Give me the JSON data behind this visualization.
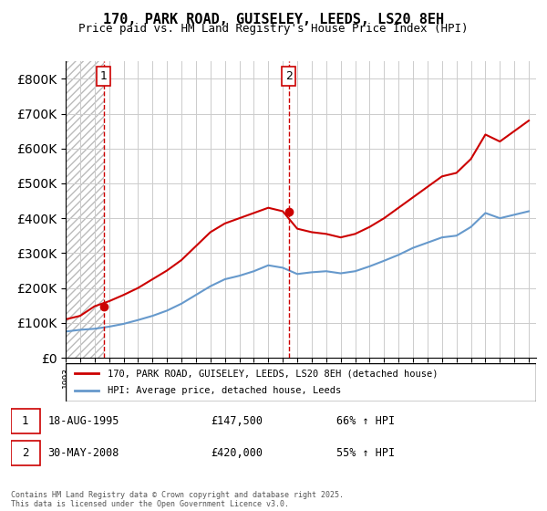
{
  "title_line1": "170, PARK ROAD, GUISELEY, LEEDS, LS20 8EH",
  "title_line2": "Price paid vs. HM Land Registry's House Price Index (HPI)",
  "legend_label1": "170, PARK ROAD, GUISELEY, LEEDS, LS20 8EH (detached house)",
  "legend_label2": "HPI: Average price, detached house, Leeds",
  "sale1_date": "18-AUG-1995",
  "sale1_price": 147500,
  "sale1_label": "1",
  "sale1_year": 1995.63,
  "sale2_date": "30-MAY-2008",
  "sale2_price": 420000,
  "sale2_label": "2",
  "sale2_year": 2008.41,
  "annotation1": "1   18-AUG-1995      £147,500        66% ↑ HPI",
  "annotation2": "2   30-MAY-2008      £420,000        55% ↑ HPI",
  "footer": "Contains HM Land Registry data © Crown copyright and database right 2025.\nThis data is licensed under the Open Government Licence v3.0.",
  "hpi_color": "#6699cc",
  "property_color": "#cc0000",
  "vline_color": "#cc0000",
  "background_hatch_color": "#cccccc",
  "ylim_max": 850000,
  "ylim_min": 0,
  "xlim_min": 1993,
  "xlim_max": 2025.5,
  "hpi_years": [
    1993,
    1994,
    1995,
    1996,
    1997,
    1998,
    1999,
    2000,
    2001,
    2002,
    2003,
    2004,
    2005,
    2006,
    2007,
    2008,
    2009,
    2010,
    2011,
    2012,
    2013,
    2014,
    2015,
    2016,
    2017,
    2018,
    2019,
    2020,
    2021,
    2022,
    2023,
    2024,
    2025
  ],
  "hpi_values": [
    75000,
    80000,
    83000,
    89000,
    97000,
    108000,
    120000,
    135000,
    155000,
    180000,
    205000,
    225000,
    235000,
    248000,
    265000,
    258000,
    240000,
    245000,
    248000,
    242000,
    248000,
    262000,
    278000,
    295000,
    315000,
    330000,
    345000,
    350000,
    375000,
    415000,
    400000,
    410000,
    420000
  ],
  "property_years": [
    1993,
    1994,
    1995,
    1996,
    1997,
    1998,
    1999,
    2000,
    2001,
    2002,
    2003,
    2004,
    2005,
    2006,
    2007,
    2008,
    2009,
    2010,
    2011,
    2012,
    2013,
    2014,
    2015,
    2016,
    2017,
    2018,
    2019,
    2020,
    2021,
    2022,
    2023,
    2024,
    2025
  ],
  "property_values": [
    110000,
    120000,
    147500,
    162000,
    180000,
    200000,
    225000,
    250000,
    280000,
    320000,
    360000,
    385000,
    400000,
    415000,
    430000,
    420000,
    370000,
    360000,
    355000,
    345000,
    355000,
    375000,
    400000,
    430000,
    460000,
    490000,
    520000,
    530000,
    570000,
    640000,
    620000,
    650000,
    680000
  ]
}
